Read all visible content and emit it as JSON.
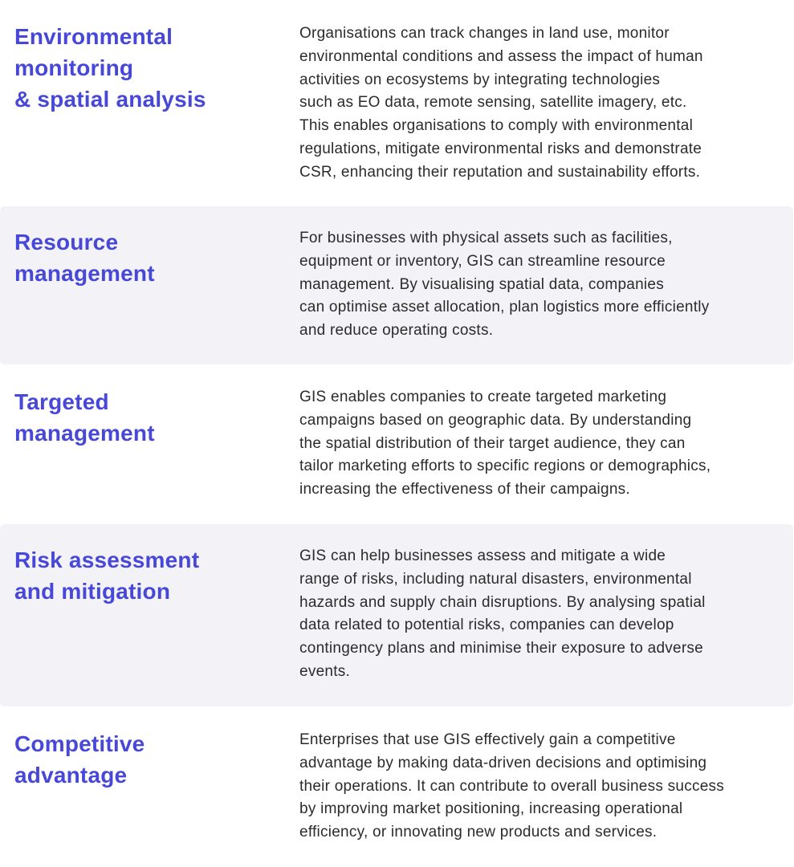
{
  "accent_color": "#4848d8",
  "band_color": "#f3f3f7",
  "sections": [
    {
      "heading": [
        "Environmental",
        "monitoring",
        "& spatial analysis"
      ],
      "body": [
        "Organisations can track changes in land use, monitor",
        "environmental conditions and assess the impact of human",
        "activities on ecosystems by integrating technologies",
        "such as EO data, remote sensing, satellite imagery, etc.",
        "This enables organisations to comply with environmental",
        "regulations, mitigate environmental risks and demonstrate",
        "CSR, enhancing their reputation and sustainability efforts."
      ]
    },
    {
      "heading": [
        "Resource",
        "management"
      ],
      "body": [
        "For businesses with physical assets such as facilities,",
        "equipment or inventory, GIS can streamline resource",
        "management. By visualising spatial data, companies",
        "can optimise asset allocation, plan logistics more efficiently",
        "and reduce operating costs."
      ]
    },
    {
      "heading": [
        "Targeted",
        "management"
      ],
      "body": [
        "GIS enables companies to create targeted marketing",
        "campaigns based on geographic data. By understanding",
        "the spatial distribution of their target audience, they can",
        "tailor marketing efforts to specific regions or demographics,",
        "increasing the effectiveness of their campaigns."
      ]
    },
    {
      "heading": [
        "Risk assessment",
        "and mitigation"
      ],
      "body": [
        "GIS can help businesses assess and mitigate a wide",
        "range of risks, including natural disasters, environmental",
        "hazards and supply chain disruptions. By analysing spatial",
        "data related to potential risks, companies can develop",
        "contingency plans and minimise their exposure to adverse",
        "events."
      ]
    },
    {
      "heading": [
        "Competitive",
        "advantage"
      ],
      "body": [
        "Enterprises that use GIS effectively gain a competitive",
        "advantage by making data-driven decisions and optimising",
        "their operations. It can contribute to overall business success",
        "by improving market positioning, increasing operational",
        "efficiency, or innovating new products and services."
      ]
    }
  ]
}
